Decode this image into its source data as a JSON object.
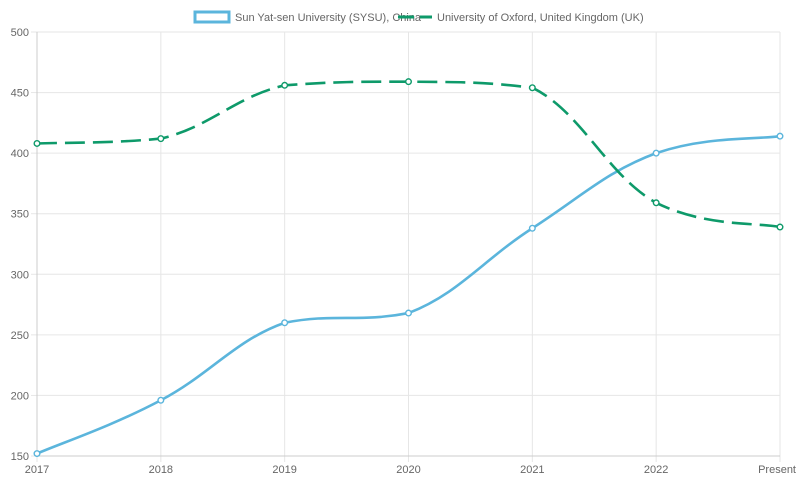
{
  "chart_data": {
    "type": "line",
    "categories": [
      "2017",
      "2018",
      "2019",
      "2020",
      "2021",
      "2022",
      "Present"
    ],
    "series": [
      {
        "name": "Sun Yat-sen University (SYSU), China",
        "values": [
          152,
          196,
          260,
          268,
          338,
          400,
          414
        ],
        "color": "#5bb5dc",
        "dash": "solid"
      },
      {
        "name": "University of Oxford, United Kingdom (UK)",
        "values": [
          408,
          412,
          456,
          459,
          454,
          359,
          339
        ],
        "color": "#0e9a6a",
        "dash": "dashed"
      }
    ],
    "ylim": [
      150,
      500
    ],
    "yticks": [
      150,
      200,
      250,
      300,
      350,
      400,
      450,
      500
    ],
    "grid": true,
    "legend_position": "top-center",
    "xlabel": "",
    "ylabel": ""
  }
}
